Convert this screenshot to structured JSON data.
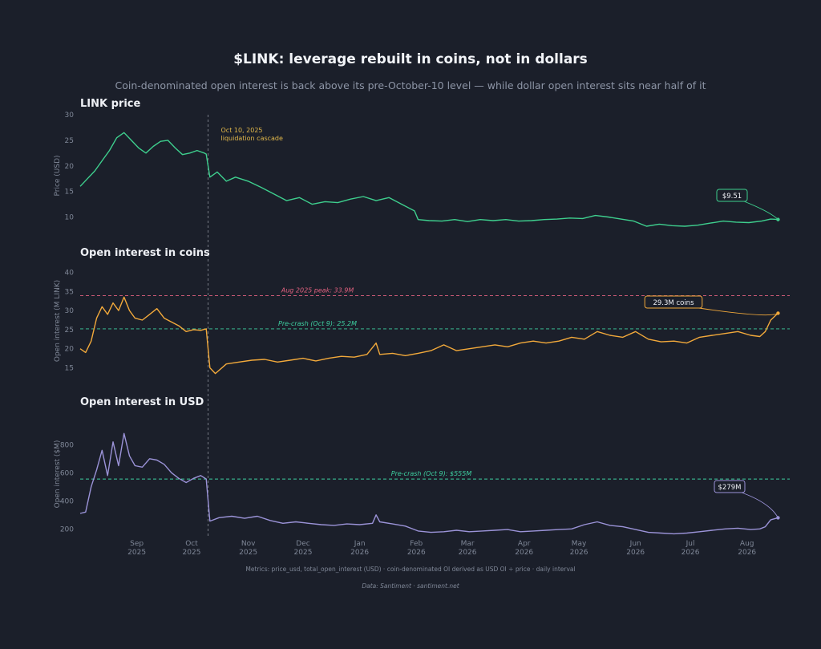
{
  "title": "$LINK: leverage rebuilt in coins, not in dollars",
  "subtitle": "Coin-denominated open interest is back above its pre-October-10 level — while dollar open interest sits near half of it",
  "footer": {
    "metrics": "Metrics: price_usd, total_open_interest (USD) · coin-denominated OI derived as USD OI ÷ price · daily interval",
    "source": "Data: Santiment · santiment.net"
  },
  "event": {
    "date": "2025-10-10",
    "label_line1": "Oct 10, 2025",
    "label_line2": "liquidation cascade"
  },
  "x_ticks": [
    {
      "date": "2025-09-01",
      "month": "Sep",
      "year": "2025"
    },
    {
      "date": "2025-10-01",
      "month": "Oct",
      "year": "2025"
    },
    {
      "date": "2025-11-01",
      "month": "Nov",
      "year": "2025"
    },
    {
      "date": "2025-12-01",
      "month": "Dec",
      "year": "2025"
    },
    {
      "date": "2026-01-01",
      "month": "Jan",
      "year": "2026"
    },
    {
      "date": "2026-02-01",
      "month": "Feb",
      "year": "2026"
    },
    {
      "date": "2026-03-01",
      "month": "Mar",
      "year": "2026"
    },
    {
      "date": "2026-04-01",
      "month": "Apr",
      "year": "2026"
    },
    {
      "date": "2026-05-01",
      "month": "May",
      "year": "2026"
    },
    {
      "date": "2026-06-01",
      "month": "Jun",
      "year": "2026"
    },
    {
      "date": "2026-07-01",
      "month": "Jul",
      "year": "2026"
    },
    {
      "date": "2026-08-01",
      "month": "Aug",
      "year": "2026"
    }
  ],
  "chart_data": [
    {
      "type": "line",
      "title": "LINK price",
      "ylabel": "Price (USD)",
      "ylim": [
        6,
        30
      ],
      "yticks": [
        10,
        15,
        20,
        25,
        30
      ],
      "xlim": [
        "2025-08-01",
        "2026-08-20"
      ],
      "color": "#3ecf8e",
      "last_label": "$9.51",
      "series": [
        {
          "x": [
            "2025-08-01",
            "2025-08-05",
            "2025-08-09",
            "2025-08-13",
            "2025-08-17",
            "2025-08-21",
            "2025-08-25",
            "2025-08-29",
            "2025-09-02",
            "2025-09-06",
            "2025-09-10",
            "2025-09-14",
            "2025-09-18",
            "2025-09-22",
            "2025-09-26",
            "2025-09-30",
            "2025-10-04",
            "2025-10-08",
            "2025-10-09",
            "2025-10-11",
            "2025-10-15",
            "2025-10-20",
            "2025-10-25",
            "2025-11-01",
            "2025-11-08",
            "2025-11-15",
            "2025-11-22",
            "2025-11-29",
            "2025-12-06",
            "2025-12-13",
            "2025-12-20",
            "2025-12-27",
            "2026-01-03",
            "2026-01-10",
            "2026-01-17",
            "2026-01-24",
            "2026-01-31",
            "2026-02-02",
            "2026-02-08",
            "2026-02-15",
            "2026-02-22",
            "2026-03-01",
            "2026-03-08",
            "2026-03-15",
            "2026-03-22",
            "2026-03-29",
            "2026-04-05",
            "2026-04-12",
            "2026-04-19",
            "2026-04-26",
            "2026-05-03",
            "2026-05-10",
            "2026-05-17",
            "2026-05-24",
            "2026-05-31",
            "2026-06-07",
            "2026-06-14",
            "2026-06-21",
            "2026-06-28",
            "2026-07-05",
            "2026-07-12",
            "2026-07-19",
            "2026-07-26",
            "2026-08-02",
            "2026-08-09",
            "2026-08-14",
            "2026-08-18"
          ],
          "y": [
            16,
            17.5,
            19,
            21,
            23,
            25.5,
            26.5,
            25,
            23.5,
            22.5,
            23.8,
            24.8,
            25,
            23.5,
            22.2,
            22.5,
            23,
            22.5,
            22.3,
            17.8,
            18.8,
            17,
            17.8,
            17,
            15.8,
            14.5,
            13.2,
            13.8,
            12.5,
            13,
            12.8,
            13.5,
            14,
            13.2,
            13.8,
            12.5,
            11.2,
            9.5,
            9.3,
            9.2,
            9.5,
            9.1,
            9.5,
            9.3,
            9.5,
            9.2,
            9.3,
            9.5,
            9.6,
            9.8,
            9.7,
            10.3,
            10,
            9.6,
            9.2,
            8.2,
            8.6,
            8.3,
            8.2,
            8.4,
            8.8,
            9.2,
            9,
            8.9,
            9.2,
            9.6,
            9.51
          ]
        }
      ]
    },
    {
      "type": "line",
      "title": "Open interest in coins",
      "ylabel": "Open interest (M LINK)",
      "ylim": [
        13,
        42
      ],
      "yticks": [
        15,
        20,
        25,
        30,
        35,
        40
      ],
      "xlim": [
        "2025-08-01",
        "2026-08-20"
      ],
      "color": "#f2a93b",
      "last_label": "29.3M coins",
      "reference_lines": [
        {
          "value": 33.9,
          "label": "Aug 2025 peak: 33.9M",
          "color": "#e0617f"
        },
        {
          "value": 25.2,
          "label": "Pre-crash (Oct 9): 25.2M",
          "color": "#3ecfa0"
        }
      ],
      "series": [
        {
          "x": [
            "2025-08-01",
            "2025-08-04",
            "2025-08-07",
            "2025-08-10",
            "2025-08-13",
            "2025-08-16",
            "2025-08-19",
            "2025-08-22",
            "2025-08-25",
            "2025-08-28",
            "2025-08-31",
            "2025-09-04",
            "2025-09-08",
            "2025-09-12",
            "2025-09-16",
            "2025-09-20",
            "2025-09-24",
            "2025-09-28",
            "2025-10-02",
            "2025-10-06",
            "2025-10-09",
            "2025-10-11",
            "2025-10-14",
            "2025-10-20",
            "2025-10-27",
            "2025-11-03",
            "2025-11-10",
            "2025-11-17",
            "2025-11-24",
            "2025-12-01",
            "2025-12-08",
            "2025-12-15",
            "2025-12-22",
            "2025-12-29",
            "2026-01-05",
            "2026-01-10",
            "2026-01-12",
            "2026-01-19",
            "2026-01-26",
            "2026-02-02",
            "2026-02-09",
            "2026-02-16",
            "2026-02-23",
            "2026-03-02",
            "2026-03-09",
            "2026-03-16",
            "2026-03-23",
            "2026-03-30",
            "2026-04-06",
            "2026-04-13",
            "2026-04-20",
            "2026-04-27",
            "2026-05-04",
            "2026-05-11",
            "2026-05-18",
            "2026-05-25",
            "2026-06-01",
            "2026-06-08",
            "2026-06-15",
            "2026-06-22",
            "2026-06-29",
            "2026-07-06",
            "2026-07-13",
            "2026-07-20",
            "2026-07-27",
            "2026-08-03",
            "2026-08-08",
            "2026-08-11",
            "2026-08-14",
            "2026-08-18"
          ],
          "y": [
            20,
            19,
            22,
            28,
            31,
            29,
            32,
            30,
            33.5,
            30,
            28,
            27.5,
            29,
            30.5,
            28,
            27,
            26,
            24.5,
            25,
            24.8,
            25.2,
            15,
            13.5,
            16,
            16.5,
            17,
            17.2,
            16.5,
            17,
            17.5,
            16.8,
            17.5,
            18,
            17.8,
            18.5,
            21.5,
            18.5,
            18.8,
            18.2,
            18.8,
            19.5,
            21,
            19.5,
            20,
            20.5,
            21,
            20.5,
            21.5,
            22,
            21.5,
            22,
            23,
            22.5,
            24.5,
            23.5,
            23,
            24.5,
            22.5,
            21.8,
            22,
            21.5,
            23,
            23.5,
            24,
            24.5,
            23.5,
            23.2,
            24.5,
            27.5,
            29.3
          ]
        }
      ]
    },
    {
      "type": "line",
      "title": "Open interest in USD",
      "ylabel": "Open interest ($M)",
      "ylim": [
        150,
        950
      ],
      "yticks": [
        200,
        400,
        600,
        800
      ],
      "xlim": [
        "2025-08-01",
        "2026-08-20"
      ],
      "color": "#9b93d8",
      "last_label": "$279M",
      "reference_lines": [
        {
          "value": 555,
          "label": "Pre-crash (Oct 9): $555M",
          "color": "#3ecfa0"
        }
      ],
      "series": [
        {
          "x": [
            "2025-08-01",
            "2025-08-04",
            "2025-08-07",
            "2025-08-10",
            "2025-08-13",
            "2025-08-16",
            "2025-08-19",
            "2025-08-22",
            "2025-08-25",
            "2025-08-28",
            "2025-08-31",
            "2025-09-04",
            "2025-09-08",
            "2025-09-12",
            "2025-09-16",
            "2025-09-20",
            "2025-09-24",
            "2025-09-28",
            "2025-10-02",
            "2025-10-06",
            "2025-10-09",
            "2025-10-11",
            "2025-10-16",
            "2025-10-23",
            "2025-10-30",
            "2025-11-06",
            "2025-11-13",
            "2025-11-20",
            "2025-11-27",
            "2025-12-04",
            "2025-12-11",
            "2025-12-18",
            "2025-12-25",
            "2026-01-01",
            "2026-01-08",
            "2026-01-10",
            "2026-01-12",
            "2026-01-19",
            "2026-01-26",
            "2026-02-02",
            "2026-02-09",
            "2026-02-16",
            "2026-02-23",
            "2026-03-02",
            "2026-03-09",
            "2026-03-16",
            "2026-03-23",
            "2026-03-30",
            "2026-04-06",
            "2026-04-13",
            "2026-04-20",
            "2026-04-27",
            "2026-05-04",
            "2026-05-11",
            "2026-05-18",
            "2026-05-25",
            "2026-06-01",
            "2026-06-08",
            "2026-06-15",
            "2026-06-22",
            "2026-06-29",
            "2026-07-06",
            "2026-07-13",
            "2026-07-20",
            "2026-07-27",
            "2026-08-03",
            "2026-08-08",
            "2026-08-11",
            "2026-08-14",
            "2026-08-18"
          ],
          "y": [
            310,
            320,
            500,
            620,
            760,
            580,
            820,
            650,
            880,
            720,
            650,
            640,
            700,
            690,
            660,
            600,
            560,
            530,
            560,
            580,
            555,
            255,
            280,
            290,
            275,
            290,
            260,
            240,
            250,
            240,
            230,
            225,
            235,
            230,
            240,
            300,
            250,
            235,
            220,
            185,
            175,
            180,
            190,
            180,
            185,
            190,
            195,
            180,
            185,
            190,
            195,
            200,
            230,
            250,
            225,
            215,
            195,
            175,
            170,
            165,
            170,
            180,
            190,
            200,
            205,
            195,
            200,
            215,
            265,
            279
          ]
        }
      ]
    }
  ]
}
